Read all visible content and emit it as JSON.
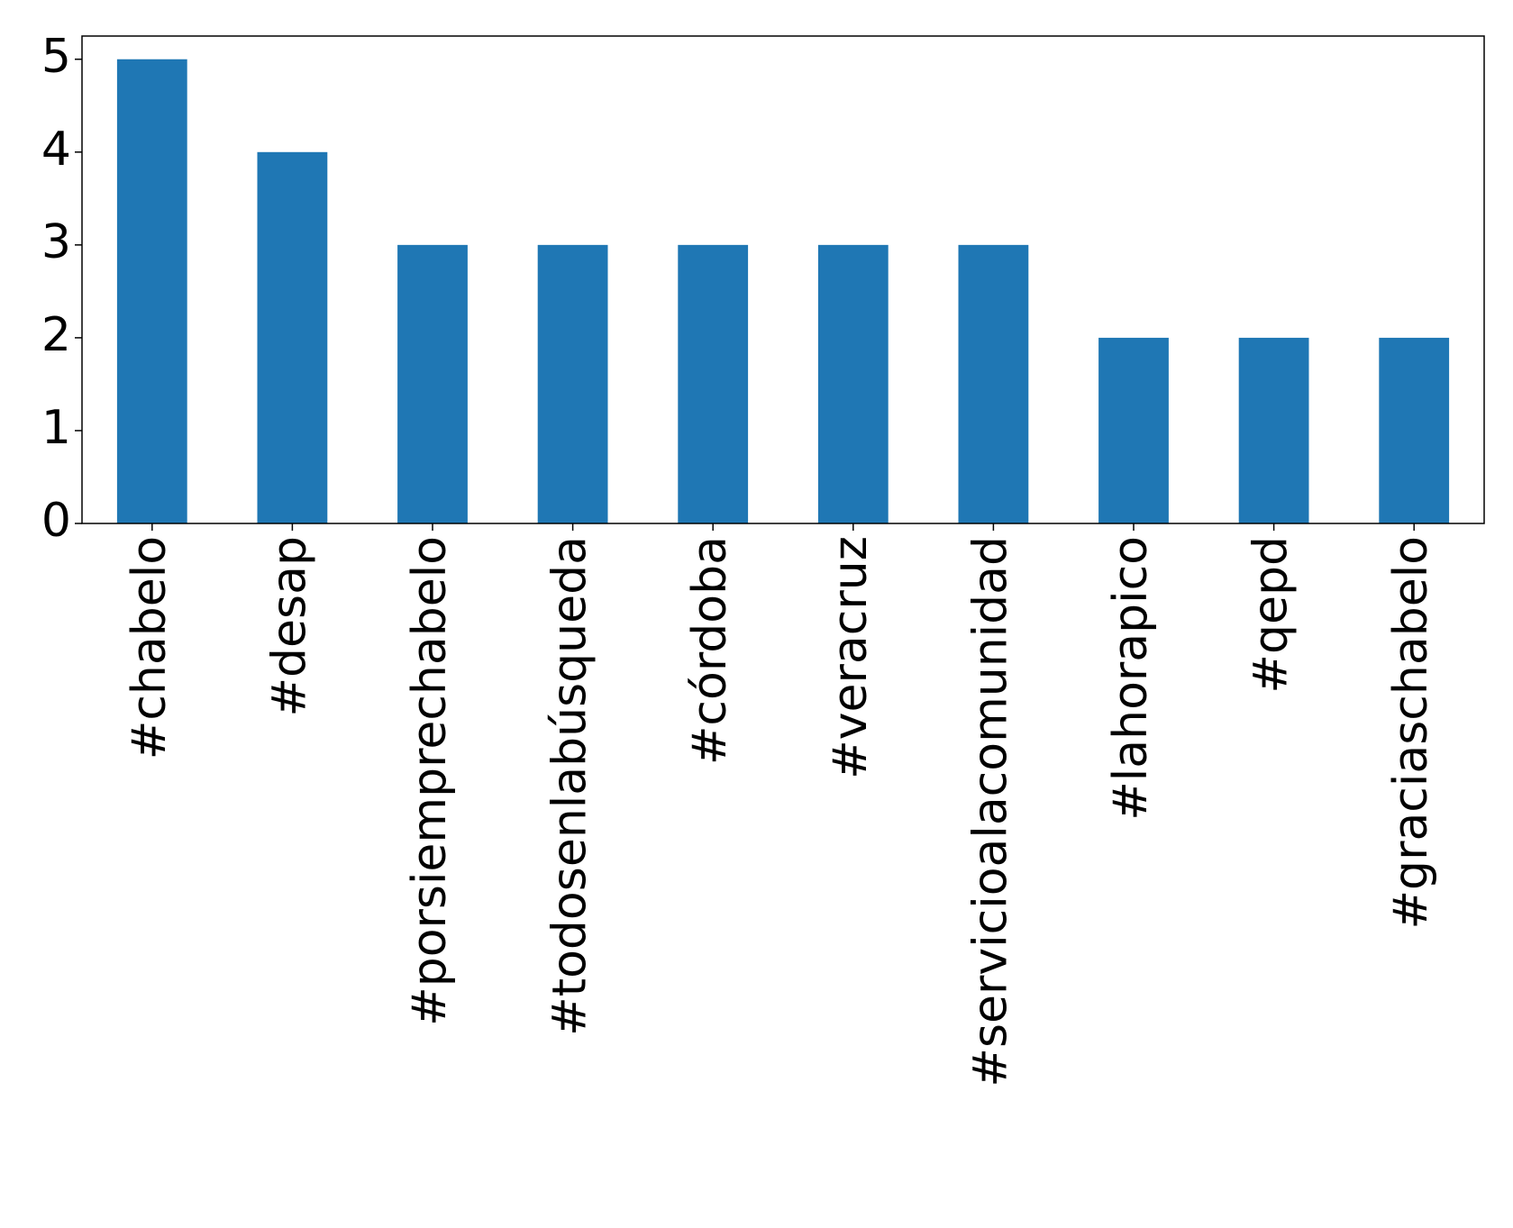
{
  "chart_data": {
    "type": "bar",
    "categories": [
      "#chabelo",
      "#desap",
      "#porsiemprechabelo",
      "#todosenlabúsqueda",
      "#córdoba",
      "#veracruz",
      "#servicioalacomunidad",
      "#lahorapico",
      "#qepd",
      "#graciaschabelo"
    ],
    "values": [
      5,
      4,
      3,
      3,
      3,
      3,
      3,
      2,
      2,
      2
    ],
    "color": "#1f77b4",
    "ylim": [
      0,
      5.25
    ],
    "yticks": [
      0,
      1,
      2,
      3,
      4,
      5
    ],
    "grid": false
  }
}
